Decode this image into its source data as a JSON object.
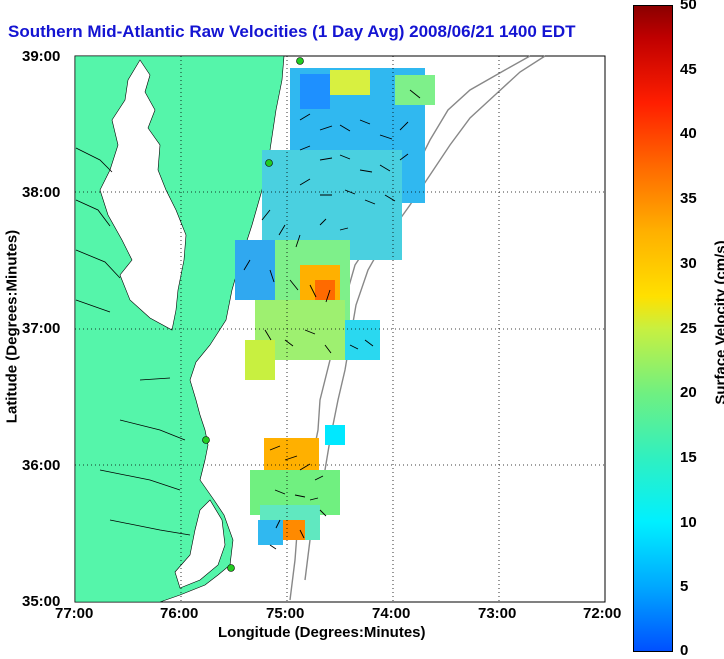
{
  "title": "Southern Mid-Atlantic Raw Velocities (1 Day Avg) 2008/06/21 1400 EDT",
  "xlabel": "Longitude (Degrees:Minutes)",
  "ylabel": "Latitude (Degrees:Minutes)",
  "colorbar": {
    "label": "Surface Velocity (cm/s)",
    "ticks": [
      "0",
      "5",
      "10",
      "15",
      "20",
      "25",
      "30",
      "35",
      "40",
      "45",
      "50"
    ],
    "range": [
      0,
      50
    ]
  },
  "x_ticks": [
    "77:00",
    "76:00",
    "75:00",
    "74:00",
    "73:00",
    "72:00"
  ],
  "y_ticks": [
    "39:00",
    "38:00",
    "37:00",
    "36:00",
    "35:00"
  ],
  "colors": {
    "land": "#55f5aa",
    "title": "#1414d2",
    "coast_contour": "#888888",
    "arrows": "#000000",
    "station": "#22cc22"
  }
}
